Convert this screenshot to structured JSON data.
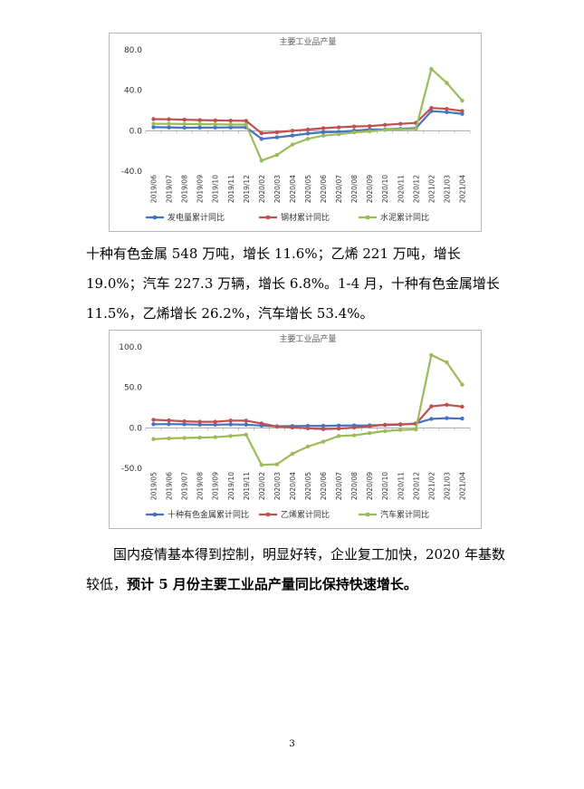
{
  "chart_data": [
    {
      "type": "line",
      "title": "主要工业品产量",
      "categories": [
        "2019/06",
        "2019/07",
        "2019/08",
        "2019/09",
        "2019/10",
        "2019/11",
        "2019/12",
        "2020/02",
        "2020/03",
        "2020/04",
        "2020/05",
        "2020/06",
        "2020/07",
        "2020/08",
        "2020/09",
        "2020/10",
        "2020/11",
        "2020/12",
        "2021/02",
        "2021/03",
        "2021/04"
      ],
      "ylim": [
        -40,
        80
      ],
      "yticks": [
        "80.0",
        "40.0",
        "0.0",
        "-40.0"
      ],
      "ytick_values": [
        80,
        40,
        0,
        -40
      ],
      "legend": "bottom",
      "series": [
        {
          "name": "发电量累计同比",
          "color": "#4472c4",
          "values": [
            3.5,
            3.3,
            3.0,
            3.1,
            3.2,
            3.3,
            3.4,
            -8.0,
            -6.5,
            -4.7,
            -2.8,
            -1.5,
            -1.2,
            0.1,
            1.2,
            1.3,
            2.0,
            2.5,
            19.4,
            18.4,
            16.7
          ]
        },
        {
          "name": "钢材累计同比",
          "color": "#c0504d",
          "values": [
            11.5,
            11.3,
            11.0,
            10.5,
            10.2,
            10.0,
            9.8,
            -2.5,
            -1.5,
            0.0,
            1.2,
            2.5,
            3.4,
            4.2,
            4.6,
            5.8,
            6.8,
            7.7,
            22.5,
            21.6,
            19.5
          ]
        },
        {
          "name": "水泥累计同比",
          "color": "#9bbb59",
          "values": [
            6.8,
            6.8,
            6.7,
            6.5,
            6.4,
            6.1,
            6.1,
            -29.5,
            -23.9,
            -13.7,
            -8.0,
            -4.8,
            -3.5,
            -1.6,
            -0.6,
            0.8,
            1.5,
            1.6,
            61.1,
            47.3,
            29.8
          ]
        }
      ]
    },
    {
      "type": "line",
      "title": "主要工业品产量",
      "categories": [
        "2019/05",
        "2019/06",
        "2019/07",
        "2019/08",
        "2019/09",
        "2019/10",
        "2019/11",
        "2020/02",
        "2020/03",
        "2020/04",
        "2020/05",
        "2020/06",
        "2020/07",
        "2020/08",
        "2020/09",
        "2020/10",
        "2020/11",
        "2020/12",
        "2021/02",
        "2021/03",
        "2021/04"
      ],
      "ylim": [
        -50,
        100
      ],
      "yticks": [
        "100.0",
        "50.0",
        "0.0",
        "-50.0"
      ],
      "ytick_values": [
        100,
        50,
        0,
        -50
      ],
      "legend": "bottom",
      "series": [
        {
          "name": "十种有色金属累计同比",
          "color": "#4472c4",
          "values": [
            4.5,
            4.6,
            4.4,
            4.0,
            3.9,
            4.3,
            4.0,
            2.8,
            1.9,
            2.3,
            2.4,
            2.5,
            2.8,
            3.0,
            3.1,
            3.6,
            4.0,
            5.5,
            11.1,
            12.0,
            11.5
          ]
        },
        {
          "name": "乙烯累计同比",
          "color": "#c0504d",
          "values": [
            10.0,
            9.2,
            8.1,
            7.5,
            7.5,
            9.0,
            8.9,
            5.5,
            1.5,
            0.5,
            -0.5,
            -1.5,
            -1.0,
            0.4,
            2.0,
            3.8,
            4.5,
            4.9,
            26.6,
            28.5,
            26.2
          ]
        },
        {
          "name": "汽车累计同比",
          "color": "#9bbb59",
          "values": [
            -14.0,
            -13.0,
            -12.5,
            -12.0,
            -11.5,
            -10.0,
            -8.5,
            -45.8,
            -45.0,
            -32.0,
            -23.1,
            -17.0,
            -10.0,
            -9.2,
            -6.5,
            -4.0,
            -2.5,
            -1.9,
            90.0,
            81.0,
            53.4
          ]
        }
      ]
    }
  ],
  "paragraph1": "十种有色金属 548 万吨，增长 11.6%；乙烯 221 万吨，增长 19.0%；汽车 227.3 万辆，增长 6.8%。1-4 月，十种有色金属增长 11.5%，乙烯增长 26.2%，汽车增长 53.4%。",
  "paragraph2_normal": "国内疫情基本得到控制，明显好转，企业复工加快，2020 年基数较低，",
  "paragraph2_bold": "预计 5 月份主要工业品产量同比保持快速增长。",
  "page_number": "3"
}
